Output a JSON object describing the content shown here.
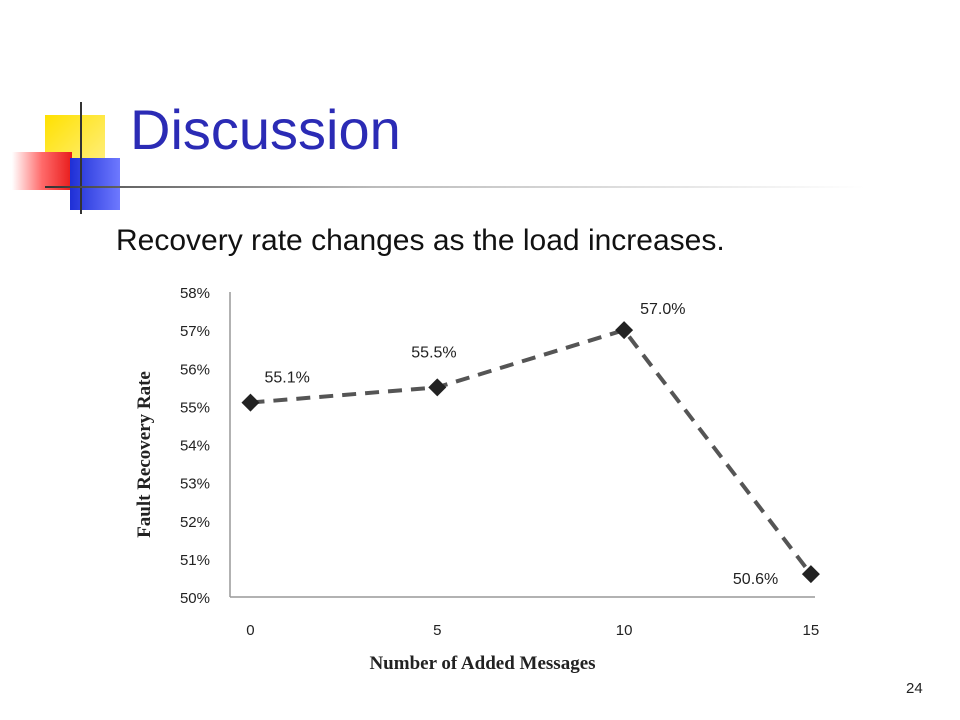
{
  "slide": {
    "title": "Discussion",
    "subtitle": "Recovery rate changes as the load increases.",
    "page_number": "24"
  },
  "colors": {
    "title": "#2b2bb5",
    "line": "#555555",
    "marker": "#222222"
  },
  "chart_data": {
    "type": "line",
    "title": "",
    "xlabel": "Number of Added Messages",
    "ylabel": "Fault Recovery Rate",
    "x": [
      0,
      5,
      10,
      15
    ],
    "x_tick_labels": [
      "0",
      "5",
      "10",
      "15"
    ],
    "y_ticks": [
      50,
      51,
      52,
      53,
      54,
      55,
      56,
      57,
      58
    ],
    "y_tick_labels": [
      "50%",
      "51%",
      "52%",
      "53%",
      "54%",
      "55%",
      "56%",
      "57%",
      "58%"
    ],
    "ylim": [
      50,
      58
    ],
    "grid": false,
    "series": [
      {
        "values": [
          55.1,
          55.5,
          57.0,
          50.6
        ],
        "data_labels": [
          "55.1%",
          "55.5%",
          "57.0%",
          "50.6%"
        ],
        "line_style": "dashed",
        "marker": "diamond"
      }
    ]
  }
}
